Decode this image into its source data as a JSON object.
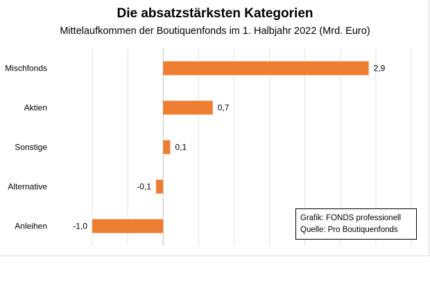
{
  "chart_data": {
    "type": "bar",
    "orientation": "horizontal",
    "title": "Die absatzstärksten Kategorien",
    "subtitle": "Mittelaufkommen der Boutiquenfonds im 1. Halbjahr 2022 (Mrd. Euro)",
    "categories": [
      "Mischfonds",
      "Aktien",
      "Sonstige",
      "Alternative",
      "Anleihen"
    ],
    "values": [
      2.9,
      0.7,
      0.1,
      -0.1,
      -1.0
    ],
    "value_labels": [
      "2,9",
      "0,7",
      "0,1",
      "-0,1",
      "-1,0"
    ],
    "xlim": [
      -1.0,
      3.5
    ],
    "grid": true,
    "bar_color": "#ED7D31"
  },
  "source_box": {
    "line1": "Grafik: FONDS professionell",
    "line2": "Quelle: Pro Boutiquenfonds"
  }
}
